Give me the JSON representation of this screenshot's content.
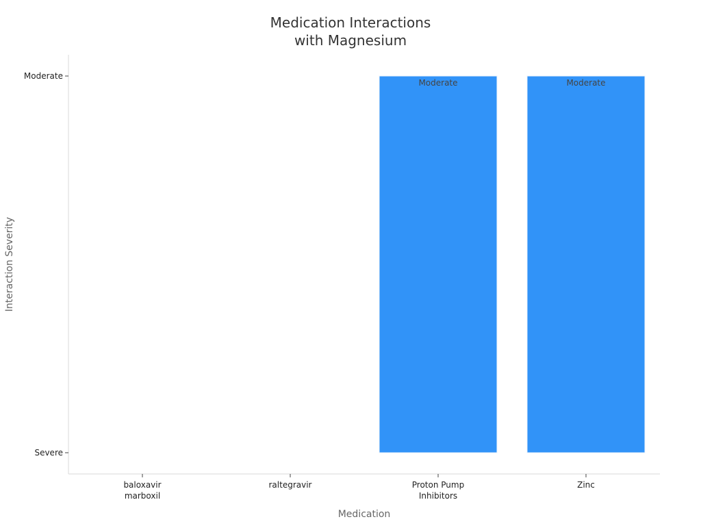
{
  "chart_data": {
    "type": "bar",
    "title": [
      "Medication Interactions",
      "with Magnesium"
    ],
    "xlabel": "Medication",
    "ylabel": "Interaction Severity",
    "categories": [
      [
        "baloxavir",
        "marboxil"
      ],
      [
        "raltegravir"
      ],
      [
        "Proton Pump",
        "Inhibitors"
      ],
      [
        "Zinc"
      ]
    ],
    "y_ticks": [
      "Severe",
      "Moderate"
    ],
    "values": [
      null,
      null,
      "Moderate",
      "Moderate"
    ],
    "bar_labels": [
      "",
      "",
      "Moderate",
      "Moderate"
    ],
    "bar_color": "#3193f8",
    "grid": false,
    "legend": "none"
  }
}
